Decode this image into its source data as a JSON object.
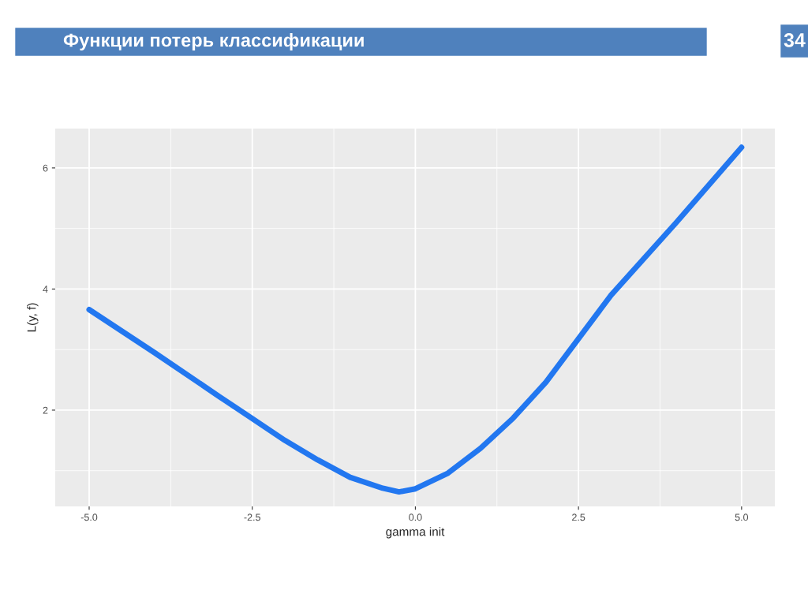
{
  "chart_data": {
    "type": "line",
    "title": "Функции потерь классификации",
    "xlabel": "gamma init",
    "ylabel": "L(y, f)",
    "annotations": [
      "34"
    ],
    "x": [
      -5,
      -4,
      -3,
      -2.5,
      -2,
      -1.5,
      -1,
      -0.5,
      -0.25,
      0,
      0.5,
      1,
      1.5,
      2,
      2.5,
      3,
      4,
      5
    ],
    "series": [
      {
        "color": "#2277f0",
        "values": [
          3.66,
          2.95,
          2.22,
          1.86,
          1.5,
          1.18,
          0.89,
          0.71,
          0.65,
          0.7,
          0.96,
          1.37,
          1.87,
          2.46,
          3.18,
          3.9,
          5.1,
          6.34
        ]
      }
    ],
    "xlim": [
      -5.52,
      5.51
    ],
    "ylim": [
      0.41,
      6.65
    ],
    "xticks": [
      {
        "value": -5,
        "label": "-5.0"
      },
      {
        "value": -2.5,
        "label": "-2.5"
      },
      {
        "value": 0,
        "label": "0.0"
      },
      {
        "value": 2.5,
        "label": "2.5"
      },
      {
        "value": 5,
        "label": "5.0"
      }
    ],
    "yticks": [
      2,
      4,
      6
    ],
    "grid": true,
    "legend": false,
    "marker": "none",
    "line_style": "solid"
  }
}
